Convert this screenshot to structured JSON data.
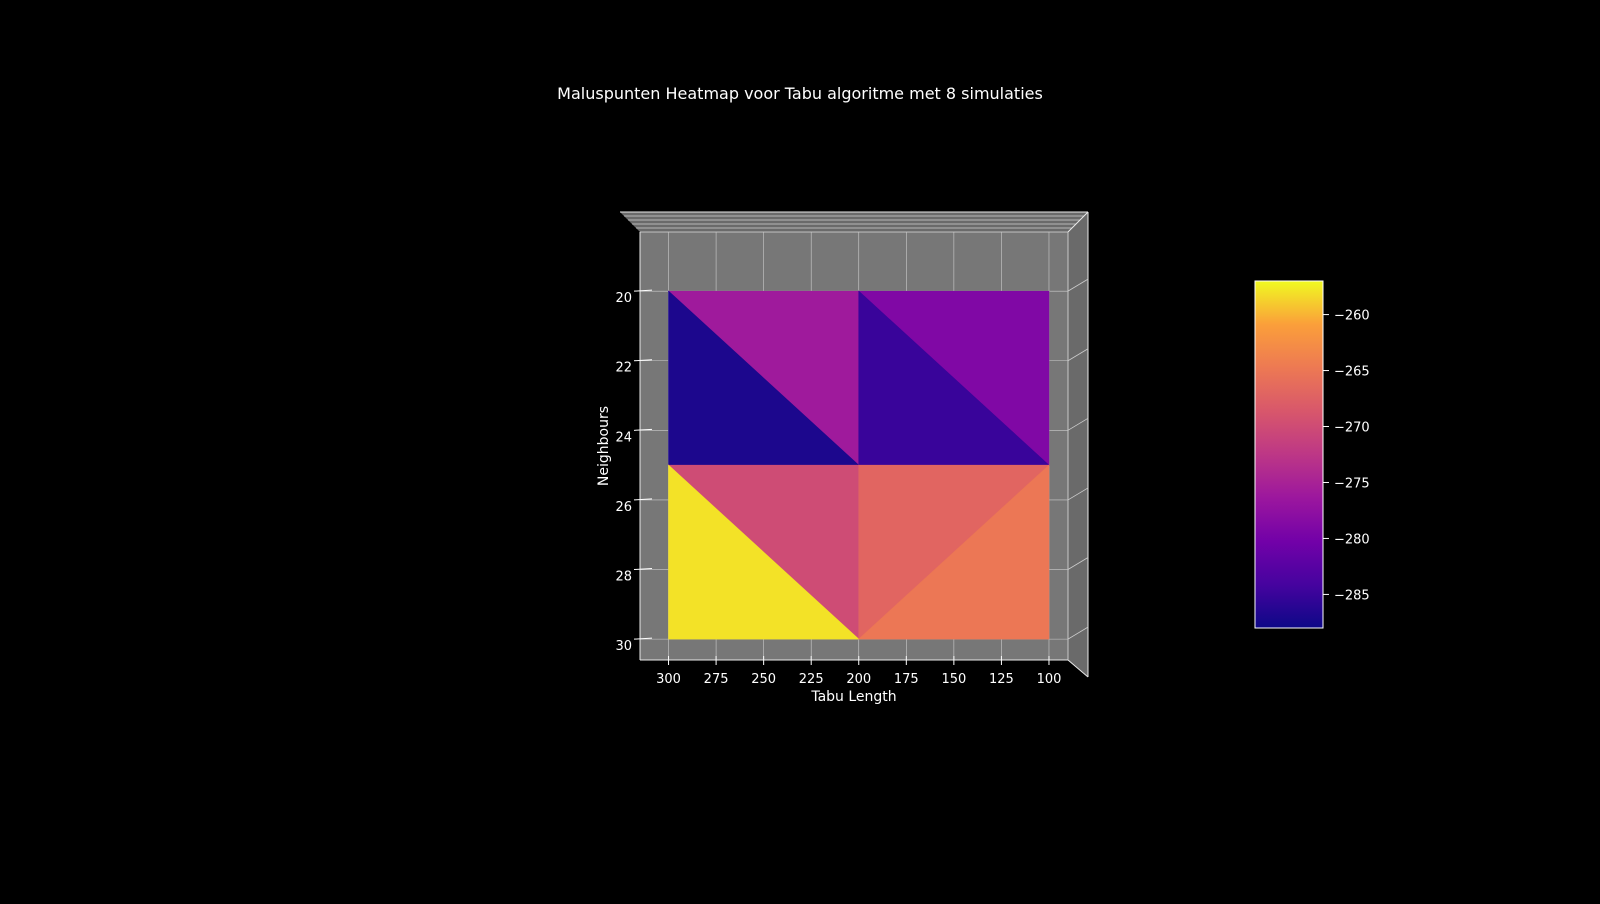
{
  "chart_data": {
    "type": "heatmap",
    "title": "Maluspunten Heatmap voor Tabu algoritme met 8 simulaties",
    "xlabel": "Tabu Length",
    "ylabel": "Neighbours",
    "x_ticks": [
      "300",
      "275",
      "250",
      "225",
      "200",
      "175",
      "150",
      "125",
      "100"
    ],
    "y_ticks": [
      "20",
      "22",
      "24",
      "26",
      "28",
      "30"
    ],
    "x_values": [
      100,
      200,
      300
    ],
    "y_values": [
      20,
      25,
      30
    ],
    "xlim": [
      90,
      315
    ],
    "ylim": [
      18.3,
      30.6
    ],
    "x_inverted": true,
    "y_top_to_bottom": true,
    "colormap": "plasma",
    "color_range": [
      -288,
      -257
    ],
    "colorbar_ticks": [
      "−260",
      "−265",
      "−270",
      "−275",
      "−280",
      "−285"
    ],
    "colorbar_tick_values": [
      -260,
      -265,
      -270,
      -275,
      -280,
      -285
    ],
    "faces": [
      {
        "x": [
          300,
          200,
          200
        ],
        "y": [
          20,
          20,
          25
        ],
        "value": -276
      },
      {
        "x": [
          300,
          200,
          300
        ],
        "y": [
          20,
          25,
          25
        ],
        "value": -287
      },
      {
        "x": [
          200,
          100,
          100
        ],
        "y": [
          20,
          20,
          25
        ],
        "value": -279
      },
      {
        "x": [
          200,
          100,
          200
        ],
        "y": [
          20,
          25,
          25
        ],
        "value": -285
      },
      {
        "x": [
          300,
          200,
          200
        ],
        "y": [
          25,
          25,
          30
        ],
        "value": -270
      },
      {
        "x": [
          300,
          200,
          300
        ],
        "y": [
          25,
          30,
          30
        ],
        "value": -258
      },
      {
        "x": [
          200,
          100,
          200
        ],
        "y": [
          25,
          25,
          30
        ],
        "value": -267
      },
      {
        "x": [
          100,
          100,
          200
        ],
        "y": [
          25,
          30,
          30
        ],
        "value": -265
      }
    ],
    "grid": true,
    "pane_color": "#777777",
    "legend": "colorbar-right"
  }
}
